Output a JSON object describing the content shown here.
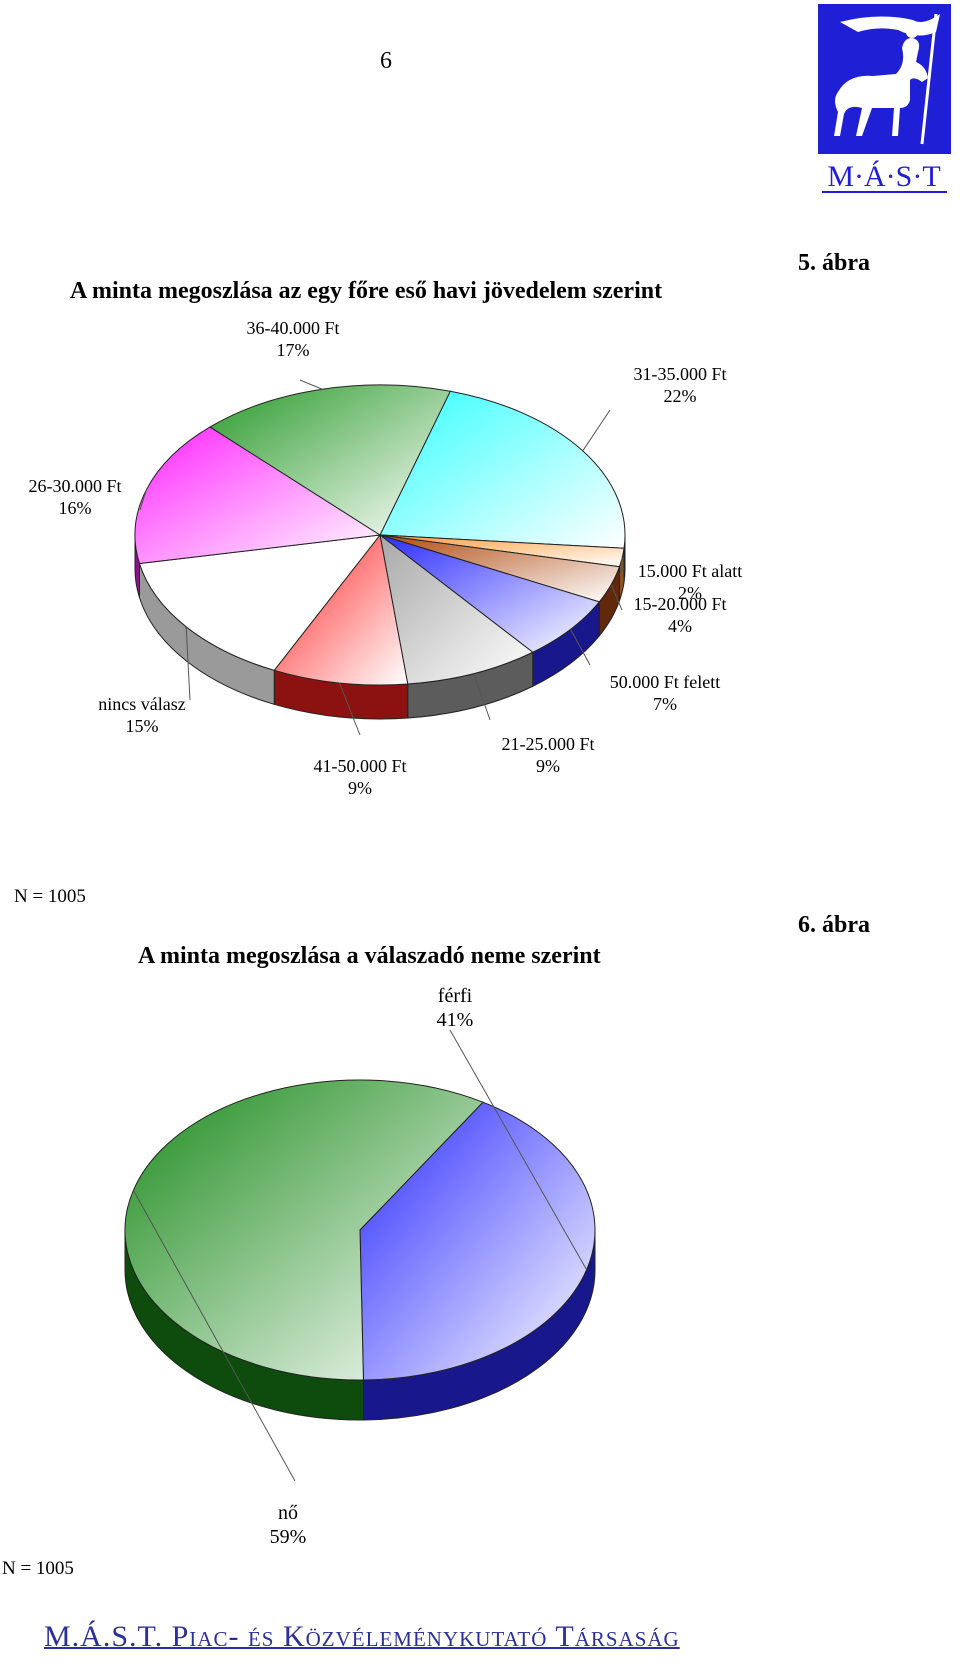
{
  "page": {
    "number": "6"
  },
  "logo": {
    "text": "M·Á·S·T",
    "icon": "centaur-flag-logo"
  },
  "figure1": {
    "label": "5. ábra",
    "n_label": "N = 1005"
  },
  "figure2": {
    "label": "6. ábra",
    "n_label": "N = 1005"
  },
  "footer": {
    "text": "M.Á.S.T. Piac- és Közvéleménykutató Társaság"
  },
  "chart_data": [
    {
      "type": "pie",
      "title": "A minta megoszlása az egy főre eső havi jövedelem szerint",
      "slices": [
        {
          "label": "31-35.000 Ft",
          "value": 22,
          "value_label": "22%",
          "color": "#33ffff"
        },
        {
          "label": "15.000 Ft alatt",
          "value": 2,
          "value_label": "2%",
          "color": "#ff9933"
        },
        {
          "label": "15-20.000 Ft",
          "value": 4,
          "value_label": "4%",
          "color": "#b04a10"
        },
        {
          "label": "50.000 Ft felett",
          "value": 7,
          "value_label": "7%",
          "color": "#2b2bff"
        },
        {
          "label": "21-25.000 Ft",
          "value": 9,
          "value_label": "9%",
          "color": "#a8a8a8"
        },
        {
          "label": "41-50.000 Ft",
          "value": 9,
          "value_label": "9%",
          "color": "#ff2020"
        },
        {
          "label": "nincs válasz",
          "value": 15,
          "value_label": "15%",
          "color": "#ffffff"
        },
        {
          "label": "26-30.000 Ft",
          "value": 16,
          "value_label": "16%",
          "color": "#ff22ff"
        },
        {
          "label": "36-40.000 Ft",
          "value": 17,
          "value_label": "17%",
          "color": "#2a9a2a"
        }
      ]
    },
    {
      "type": "pie",
      "title": "A minta megoszlása a válaszadó neme szerint",
      "slices": [
        {
          "label": "férfi",
          "value": 41,
          "value_label": "41%",
          "color": "#2b2bff"
        },
        {
          "label": "nő",
          "value": 59,
          "value_label": "59%",
          "color": "#1a8a1a"
        }
      ]
    }
  ]
}
